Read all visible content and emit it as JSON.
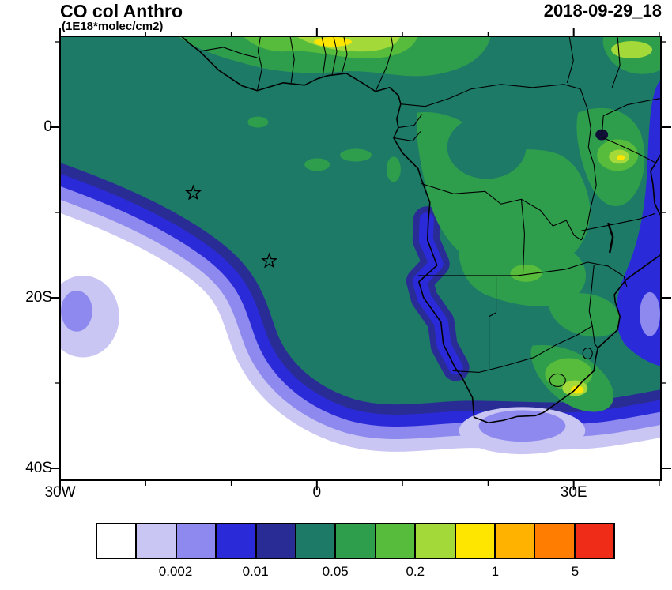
{
  "header": {
    "title": "CO col Anthro",
    "subtitle": "(1E18*molec/cm2)",
    "timestamp": "2018-09-29_18"
  },
  "map": {
    "region": "Africa / South Atlantic",
    "y_axis": {
      "major": [
        {
          "label": "0",
          "lat": 0
        },
        {
          "label": "20S",
          "lat": -20
        },
        {
          "label": "40S",
          "lat": -40
        }
      ],
      "minor_lats": [
        10,
        -10,
        -30
      ]
    },
    "x_axis": {
      "major": [
        {
          "label": "30W",
          "lon": -30
        },
        {
          "label": "0",
          "lon": 0
        },
        {
          "label": "30E",
          "lon": 30
        }
      ],
      "minor_lons": [
        -20,
        -10,
        10,
        20,
        40
      ]
    },
    "markers": [
      {
        "type": "star",
        "lon": -14.5,
        "lat": -7.7
      },
      {
        "type": "star",
        "lon": -5.6,
        "lat": -15.7
      }
    ]
  },
  "colorbar": {
    "colors": [
      "#ffffff",
      "#c9c6f3",
      "#8e89ef",
      "#2a2ad8",
      "#2a2c96",
      "#1c7a67",
      "#2f9e4c",
      "#57bb3b",
      "#a4d93a",
      "#ffe600",
      "#ffb300",
      "#ff7d00",
      "#ee2c17"
    ],
    "labels": [
      {
        "text": "0.002",
        "boundary": 2
      },
      {
        "text": "0.01",
        "boundary": 4
      },
      {
        "text": "0.05",
        "boundary": 6
      },
      {
        "text": "0.2",
        "boundary": 8
      },
      {
        "text": "1",
        "boundary": 10
      },
      {
        "text": "5",
        "boundary": 12
      }
    ]
  }
}
